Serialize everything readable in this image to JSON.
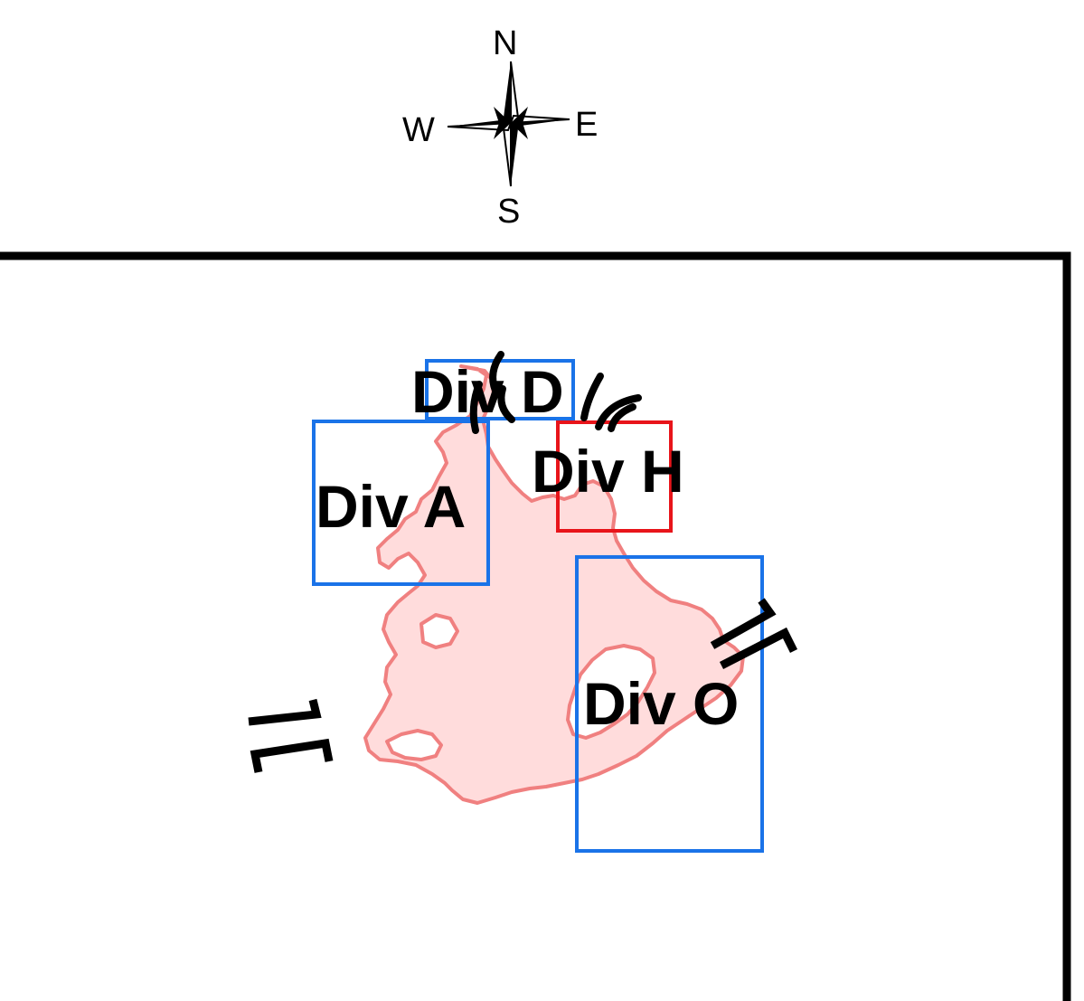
{
  "compass": {
    "north": "N",
    "east": "E",
    "south": "S",
    "west": "W"
  },
  "colors": {
    "frame": "#000000",
    "region_fill": "#ffdcdc",
    "region_stroke": "#f08080",
    "box_default": "#1a73e8",
    "box_selected": "#e8141a"
  },
  "divisions": [
    {
      "id": "div-a",
      "label": "Div A",
      "selected": false
    },
    {
      "id": "div-d",
      "label": "Div D",
      "selected": false
    },
    {
      "id": "div-h",
      "label": "Div H",
      "selected": true
    },
    {
      "id": "div-o",
      "label": "Div O",
      "selected": false
    }
  ],
  "symbols": {
    "gap": "bracket-gap-symbol",
    "arc": "arc-symbol"
  }
}
